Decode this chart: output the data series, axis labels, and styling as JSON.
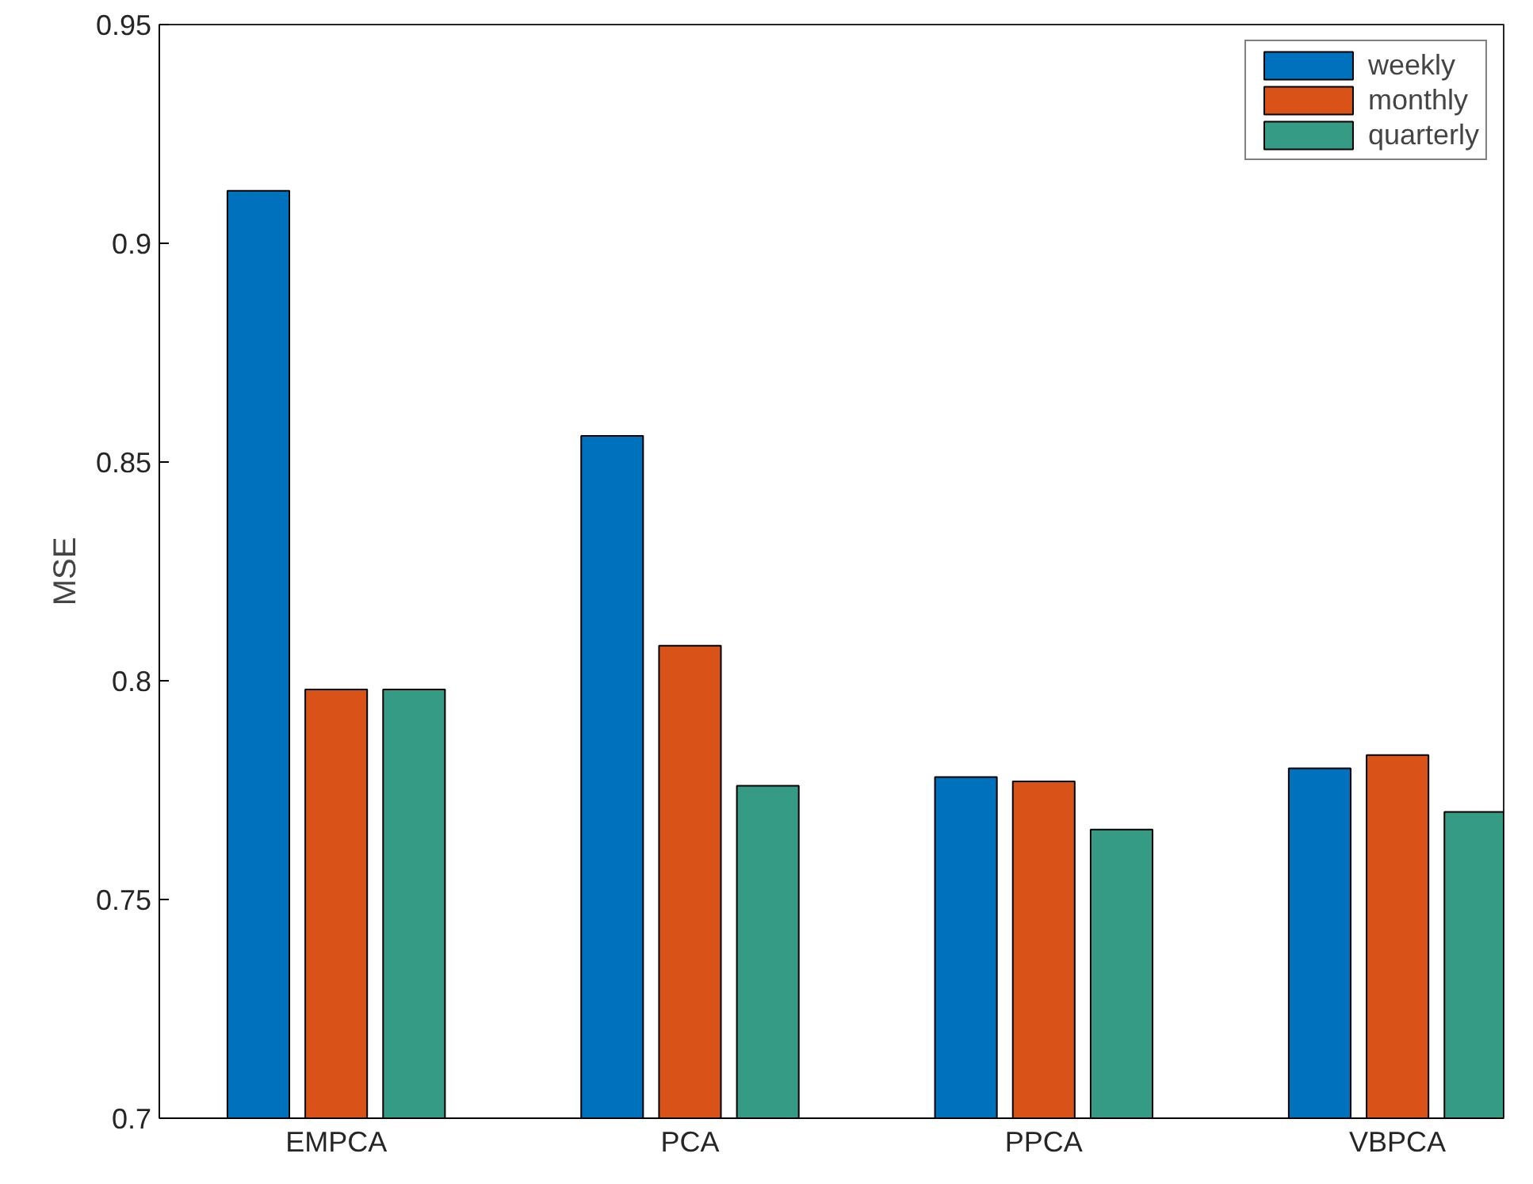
{
  "chart_data": {
    "type": "bar",
    "ylabel": "MSE",
    "categories": [
      "EMPCA",
      "PCA",
      "PPCA",
      "VBPCA"
    ],
    "series": [
      {
        "name": "weekly",
        "color": "#0072bd",
        "values": [
          0.912,
          0.856,
          0.778,
          0.78
        ]
      },
      {
        "name": "monthly",
        "color": "#d95319",
        "values": [
          0.798,
          0.808,
          0.777,
          0.783
        ]
      },
      {
        "name": "quarterly",
        "color": "#359b85",
        "values": [
          0.798,
          0.776,
          0.766,
          0.77
        ]
      }
    ],
    "ylim": [
      0.7,
      0.95
    ],
    "yticks": [
      0.7,
      0.75,
      0.8,
      0.85,
      0.9,
      0.95
    ],
    "grid": false,
    "legend": "top right"
  }
}
